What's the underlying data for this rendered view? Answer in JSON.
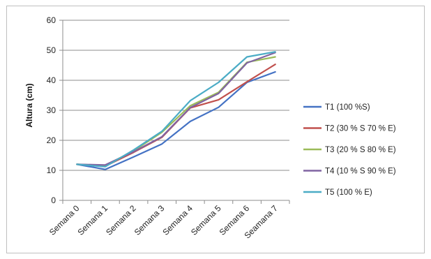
{
  "chart_data": {
    "type": "line",
    "title": "",
    "xlabel": "",
    "ylabel": "Altura (cm)",
    "ylim": [
      0,
      60
    ],
    "yticks": [
      0,
      10,
      20,
      30,
      40,
      50,
      60
    ],
    "grid": "horizontal",
    "legend": "right",
    "categories": [
      "Semana 0",
      "Semana 1",
      "Semana 2",
      "Semana 3",
      "Semana 4",
      "Semana 5",
      "Semana 6",
      "Seamana 7"
    ],
    "series": [
      {
        "name": "T1 (100 %S)",
        "color": "#4472c4",
        "values": [
          12,
          10.3,
          14.5,
          18.8,
          26.3,
          31,
          39.3,
          42.8
        ]
      },
      {
        "name": "T2 (30 % S 70 % E)",
        "color": "#c0504d",
        "values": [
          12,
          11.4,
          16,
          21,
          30.8,
          33.5,
          39.5,
          45.3
        ]
      },
      {
        "name": "T3 (20 % S 80 % E)",
        "color": "#9bbb59",
        "values": [
          12,
          11.6,
          16.5,
          22.7,
          31.5,
          36,
          46,
          47.8
        ]
      },
      {
        "name": "T4 (10 % S 90 % E)",
        "color": "#8064a2",
        "values": [
          12,
          11.8,
          16.2,
          21.2,
          30.9,
          35.6,
          45.8,
          49.2
        ]
      },
      {
        "name": "T5 (100 % E)",
        "color": "#4bacc6",
        "values": [
          12,
          11.2,
          16.8,
          23,
          33.2,
          39.3,
          47.8,
          49.5
        ]
      }
    ]
  }
}
